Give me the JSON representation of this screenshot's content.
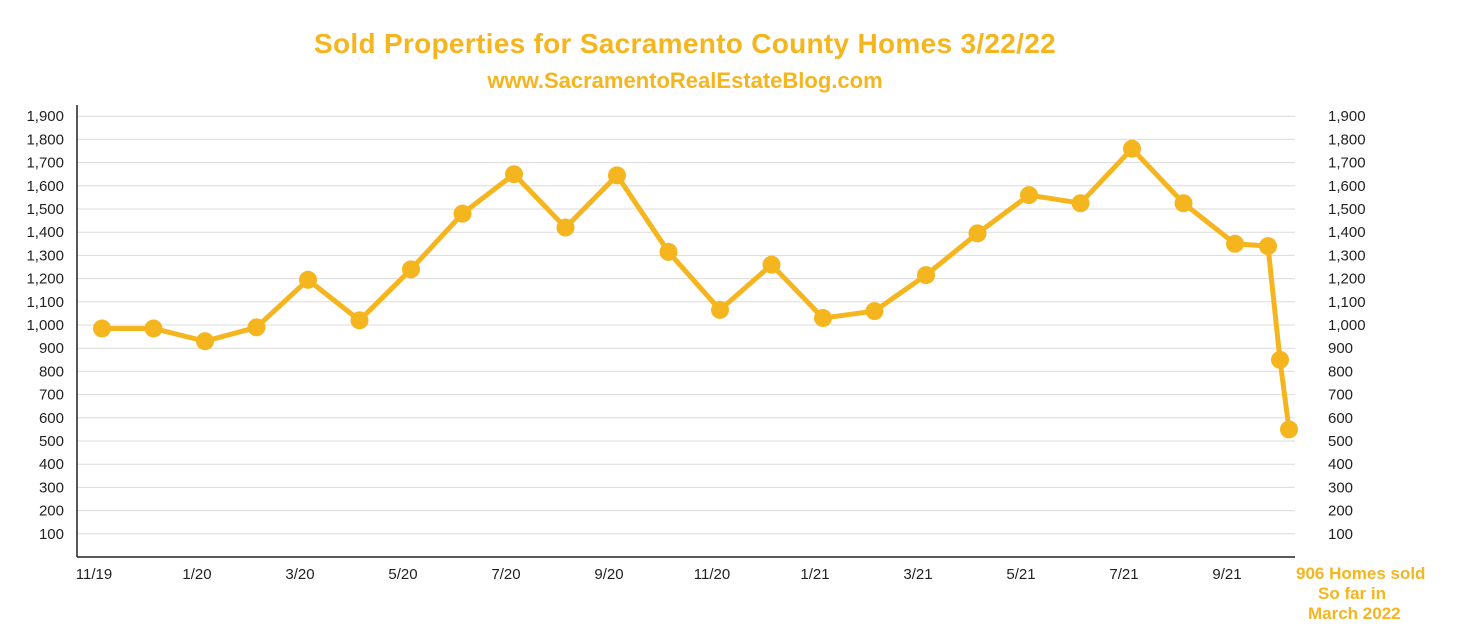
{
  "chart_data": {
    "type": "line",
    "title": "Sold Properties for Sacramento County Homes 3/22/22",
    "subtitle": "www.SacramentoRealEstateBlog.com",
    "xlabel": "",
    "ylabel": "",
    "ylim": [
      0,
      1900
    ],
    "yticks": [
      "100",
      "200",
      "300",
      "400",
      "500",
      "600",
      "700",
      "800",
      "900",
      "1,000",
      "1,100",
      "1,200",
      "1,300",
      "1,400",
      "1,500",
      "1,600",
      "1,700",
      "1,800",
      "1,900"
    ],
    "x_tick_labels": [
      "11/19",
      "1/20",
      "3/20",
      "5/20",
      "7/20",
      "9/20",
      "11/20",
      "1/21",
      "3/21",
      "5/21",
      "7/21",
      "9/21"
    ],
    "months": [
      "11/19",
      "12/19",
      "1/20",
      "2/20",
      "3/20",
      "4/20",
      "5/20",
      "6/20",
      "7/20",
      "8/20",
      "9/20",
      "10/20",
      "11/20",
      "12/20",
      "1/21",
      "2/21",
      "3/21",
      "4/21",
      "5/21",
      "6/21",
      "7/21",
      "8/21",
      "9/21",
      "10/21",
      "11/21",
      "12/21"
    ],
    "values": [
      985,
      985,
      930,
      990,
      1195,
      1020,
      1240,
      1480,
      1650,
      1420,
      1645,
      1315,
      1065,
      1260,
      1030,
      1060,
      1215,
      1395,
      1560,
      1525,
      1760,
      1525,
      1350,
      1340,
      850,
      550
    ],
    "grid": true,
    "axes": "left and right",
    "line_color": "#f5b51e",
    "annotation": [
      "906 Homes sold",
      "So  far in",
      "March 2022"
    ]
  }
}
